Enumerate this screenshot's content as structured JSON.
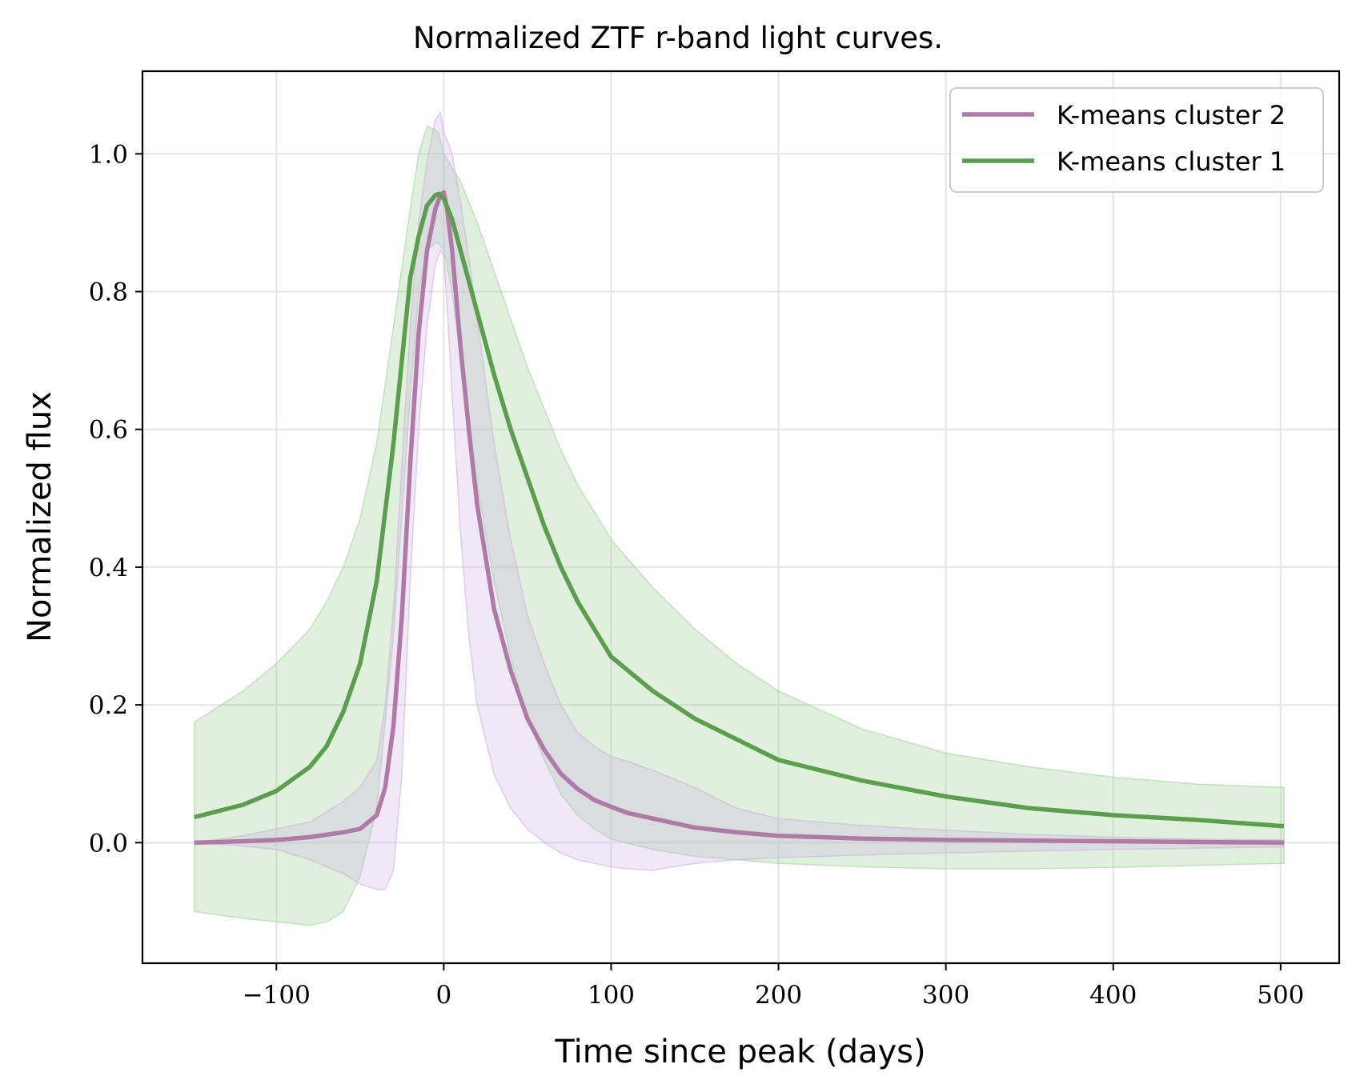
{
  "chart_data": {
    "type": "line",
    "title": "Normalized ZTF r-band light curves.",
    "xlabel": "Time since peak (days)",
    "ylabel": "Normalized flux",
    "xlim": [
      -180,
      535
    ],
    "ylim": [
      -0.175,
      1.12
    ],
    "xticks": [
      -100,
      0,
      100,
      200,
      300,
      400,
      500
    ],
    "xtick_labels": [
      "−100",
      "0",
      "100",
      "200",
      "300",
      "400",
      "500"
    ],
    "yticks": [
      0.0,
      0.2,
      0.4,
      0.6,
      0.8,
      1.0
    ],
    "ytick_labels": [
      "0.0",
      "0.2",
      "0.4",
      "0.6",
      "0.8",
      "1.0"
    ],
    "grid": true,
    "legend_position": "top-right",
    "series": [
      {
        "name": "K-means cluster 2",
        "color": "#b07aa8",
        "band_color": "#cdb2e0",
        "x": [
          -149,
          -120,
          -100,
          -80,
          -60,
          -50,
          -40,
          -35,
          -30,
          -25,
          -20,
          -15,
          -10,
          -5,
          -2,
          0,
          2,
          5,
          10,
          15,
          20,
          30,
          40,
          50,
          60,
          70,
          80,
          90,
          100,
          110,
          125,
          150,
          175,
          200,
          250,
          300,
          350,
          400,
          450,
          502
        ],
        "y": [
          0.0,
          0.002,
          0.004,
          0.008,
          0.015,
          0.02,
          0.04,
          0.08,
          0.17,
          0.33,
          0.55,
          0.74,
          0.86,
          0.92,
          0.94,
          0.944,
          0.92,
          0.86,
          0.72,
          0.6,
          0.49,
          0.34,
          0.25,
          0.18,
          0.135,
          0.1,
          0.078,
          0.062,
          0.052,
          0.043,
          0.035,
          0.022,
          0.015,
          0.01,
          0.006,
          0.004,
          0.003,
          0.002,
          0.001,
          0.0
        ],
        "lower": [
          0.0,
          -0.005,
          -0.01,
          -0.025,
          -0.045,
          -0.06,
          -0.068,
          -0.068,
          -0.04,
          0.1,
          0.38,
          0.6,
          0.75,
          0.84,
          0.86,
          0.85,
          0.78,
          0.65,
          0.45,
          0.3,
          0.2,
          0.1,
          0.05,
          0.02,
          0.0,
          -0.015,
          -0.025,
          -0.03,
          -0.035,
          -0.038,
          -0.04,
          -0.03,
          -0.025,
          -0.022,
          -0.018,
          -0.015,
          -0.012,
          -0.01,
          -0.008,
          -0.006
        ],
        "upper": [
          0.0,
          0.01,
          0.02,
          0.03,
          0.06,
          0.08,
          0.12,
          0.2,
          0.34,
          0.55,
          0.75,
          0.9,
          0.99,
          1.05,
          1.06,
          1.03,
          1.02,
          1.0,
          0.93,
          0.85,
          0.76,
          0.58,
          0.44,
          0.33,
          0.26,
          0.2,
          0.16,
          0.14,
          0.125,
          0.118,
          0.105,
          0.08,
          0.05,
          0.035,
          0.025,
          0.018,
          0.012,
          0.008,
          0.005,
          0.004
        ]
      },
      {
        "name": "K-means cluster 1",
        "color": "#5a9e4e",
        "band_color": "#a3d39c",
        "x": [
          -149,
          -120,
          -100,
          -80,
          -70,
          -60,
          -50,
          -40,
          -30,
          -20,
          -15,
          -10,
          -5,
          -3,
          0,
          5,
          10,
          20,
          30,
          40,
          50,
          60,
          70,
          80,
          90,
          100,
          125,
          150,
          175,
          200,
          250,
          300,
          350,
          400,
          450,
          502
        ],
        "y": [
          0.037,
          0.055,
          0.075,
          0.11,
          0.14,
          0.19,
          0.26,
          0.38,
          0.58,
          0.82,
          0.88,
          0.925,
          0.94,
          0.942,
          0.935,
          0.905,
          0.86,
          0.77,
          0.68,
          0.6,
          0.53,
          0.46,
          0.4,
          0.35,
          0.31,
          0.27,
          0.22,
          0.18,
          0.15,
          0.12,
          0.09,
          0.067,
          0.05,
          0.04,
          0.033,
          0.024
        ],
        "lower": [
          -0.1,
          -0.11,
          -0.115,
          -0.12,
          -0.115,
          -0.1,
          -0.05,
          0.05,
          0.3,
          0.65,
          0.8,
          0.86,
          0.87,
          0.87,
          0.86,
          0.8,
          0.7,
          0.52,
          0.38,
          0.27,
          0.18,
          0.12,
          0.07,
          0.04,
          0.02,
          0.005,
          -0.01,
          -0.02,
          -0.025,
          -0.03,
          -0.035,
          -0.038,
          -0.038,
          -0.036,
          -0.033,
          -0.03
        ],
        "upper": [
          0.175,
          0.22,
          0.26,
          0.31,
          0.35,
          0.4,
          0.47,
          0.58,
          0.75,
          0.92,
          1.0,
          1.04,
          1.035,
          1.03,
          1.0,
          0.98,
          0.96,
          0.9,
          0.83,
          0.76,
          0.69,
          0.63,
          0.57,
          0.52,
          0.48,
          0.44,
          0.37,
          0.31,
          0.26,
          0.22,
          0.165,
          0.13,
          0.11,
          0.095,
          0.085,
          0.08
        ]
      }
    ]
  }
}
